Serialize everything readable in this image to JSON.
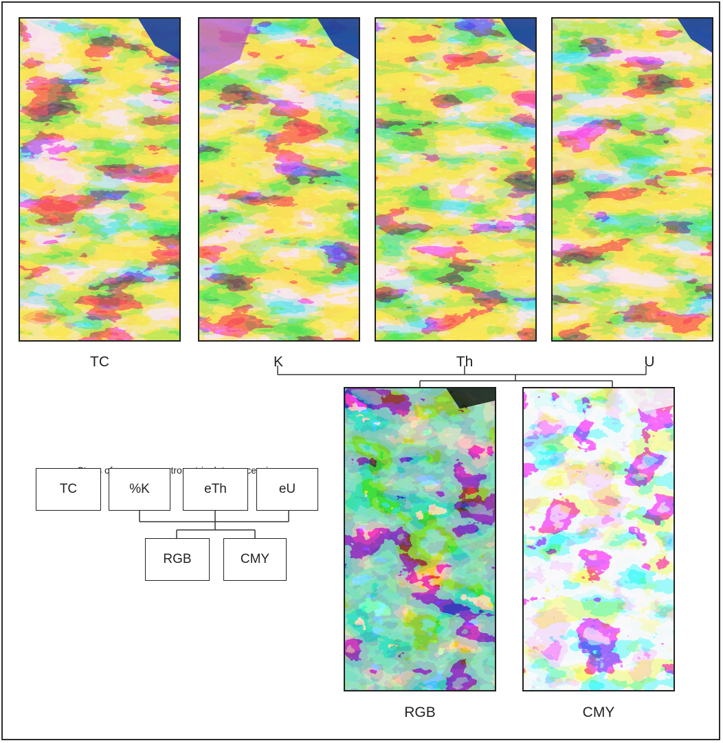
{
  "maps": [
    {
      "id": "tc",
      "label": "TC"
    },
    {
      "id": "k",
      "label": "K"
    },
    {
      "id": "th",
      "label": "Th"
    },
    {
      "id": "u",
      "label": "U"
    }
  ],
  "composites": [
    {
      "id": "rgb",
      "label": "RGB"
    },
    {
      "id": "cmy",
      "label": "CMY"
    }
  ],
  "flowchart": {
    "title": "Steps of gamma-spectrometric data processing",
    "top_boxes": [
      "TC",
      "%K",
      "eTh",
      "eU"
    ],
    "bottom_boxes": [
      "RGB",
      "CMY"
    ]
  }
}
